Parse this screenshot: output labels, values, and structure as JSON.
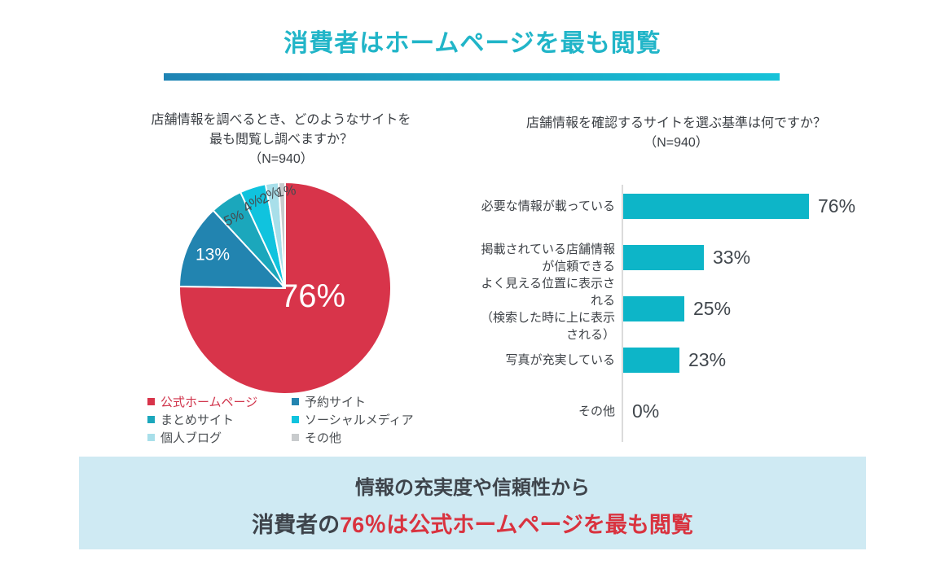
{
  "page": {
    "title": "消費者はホームページを最も閲覧",
    "title_color": "#21B5C8",
    "divider_gradient": [
      "#1E84B4",
      "#16C2D8"
    ],
    "background": "#FFFFFF"
  },
  "chart_data": [
    {
      "type": "pie",
      "title_lines": [
        "店舗情報を調べるとき、どのようなサイトを",
        "最も閲覧し調べますか？",
        "（N=940）"
      ],
      "start_angle_deg": 0,
      "direction": "clockwise",
      "slices": [
        {
          "label": "公式ホームページ",
          "value": 76,
          "value_label": "76%",
          "color": "#D8344A",
          "label_color": "#D0344B"
        },
        {
          "label": "予約サイト",
          "value": 13,
          "value_label": "13%",
          "color": "#2284B0"
        },
        {
          "label": "まとめサイト",
          "value": 5,
          "value_label": "5%",
          "color": "#1BA7BC"
        },
        {
          "label": "ソーシャルメディア",
          "value": 4,
          "value_label": "4%",
          "color": "#10C3DE"
        },
        {
          "label": "個人ブログ",
          "value": 2,
          "value_label": "2%",
          "color": "#A8DFEA"
        },
        {
          "label": "その他",
          "value": 1,
          "value_label": "1%",
          "color": "#C8CBCD"
        }
      ],
      "legend_columns": [
        [
          0,
          2,
          4
        ],
        [
          1,
          3,
          5
        ]
      ],
      "legend_text_color": "#4B4F53"
    },
    {
      "type": "bar",
      "orientation": "horizontal",
      "title_lines": [
        "店舗情報を確認するサイトを選ぶ基準は何ですか？",
        "（N=940）"
      ],
      "bar_color": "#0DB5C8",
      "xlim": [
        0,
        80
      ],
      "categories": [
        [
          "必要な情報が載っている"
        ],
        [
          "掲載されている店舗情報",
          "が信頼できる"
        ],
        [
          "よく見える位置に表示される",
          "（検索した時に上に表示される）"
        ],
        [
          "写真が充実している"
        ],
        [
          "その他"
        ]
      ],
      "values": [
        76,
        33,
        25,
        23,
        0
      ],
      "value_labels": [
        "76%",
        "33%",
        "25%",
        "23%",
        "0%"
      ]
    }
  ],
  "summary_banner": {
    "background": "#CFEAF3",
    "line1": "情報の充実度や信頼性から",
    "line2_prefix": "消費者の",
    "line2_highlight": "76％は公式ホームページを最も閲覧",
    "highlight_color": "#D9333F"
  }
}
